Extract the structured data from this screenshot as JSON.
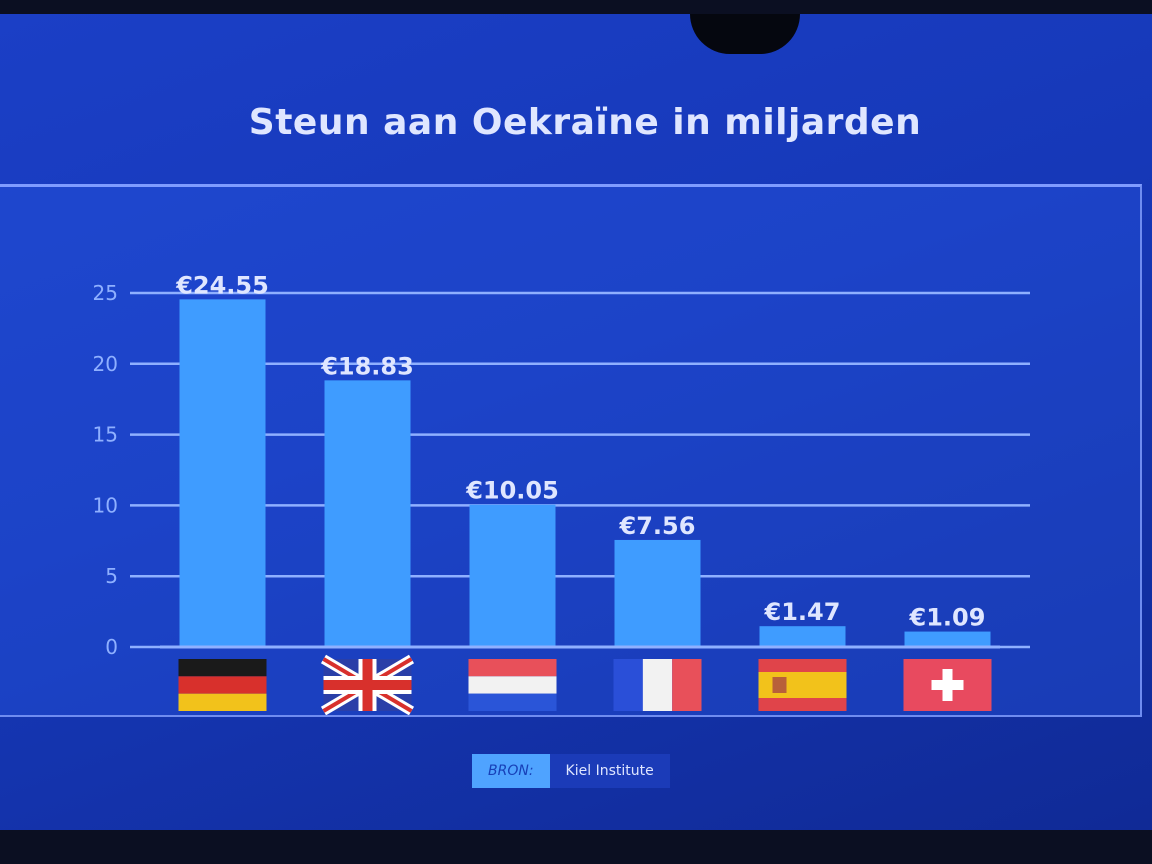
{
  "chart_data": {
    "type": "bar",
    "title": "Steun aan Oekraïne in miljarden",
    "categories": [
      "germany-flag",
      "uk-flag",
      "netherlands-flag",
      "france-flag",
      "spain-flag",
      "switzerland-flag"
    ],
    "values": [
      24.55,
      18.83,
      10.05,
      7.56,
      1.47,
      1.09
    ],
    "data_labels": [
      "€24.55",
      "€18.83",
      "€10.05",
      "€7.56",
      "€1.47",
      "€1.09"
    ],
    "yticks": [
      0,
      5,
      10,
      15,
      20,
      25
    ],
    "ylim": [
      0,
      25
    ],
    "grid": true,
    "bar_color": "#3f9cff",
    "xlabel": "",
    "ylabel": ""
  },
  "source": {
    "label": "BRON:",
    "value": "Kiel Institute"
  },
  "colors": {
    "background": "#1638b8",
    "title": "#dfe6ff",
    "gridline": "#8fb0ff",
    "tick_label": "#8fb0ff"
  }
}
